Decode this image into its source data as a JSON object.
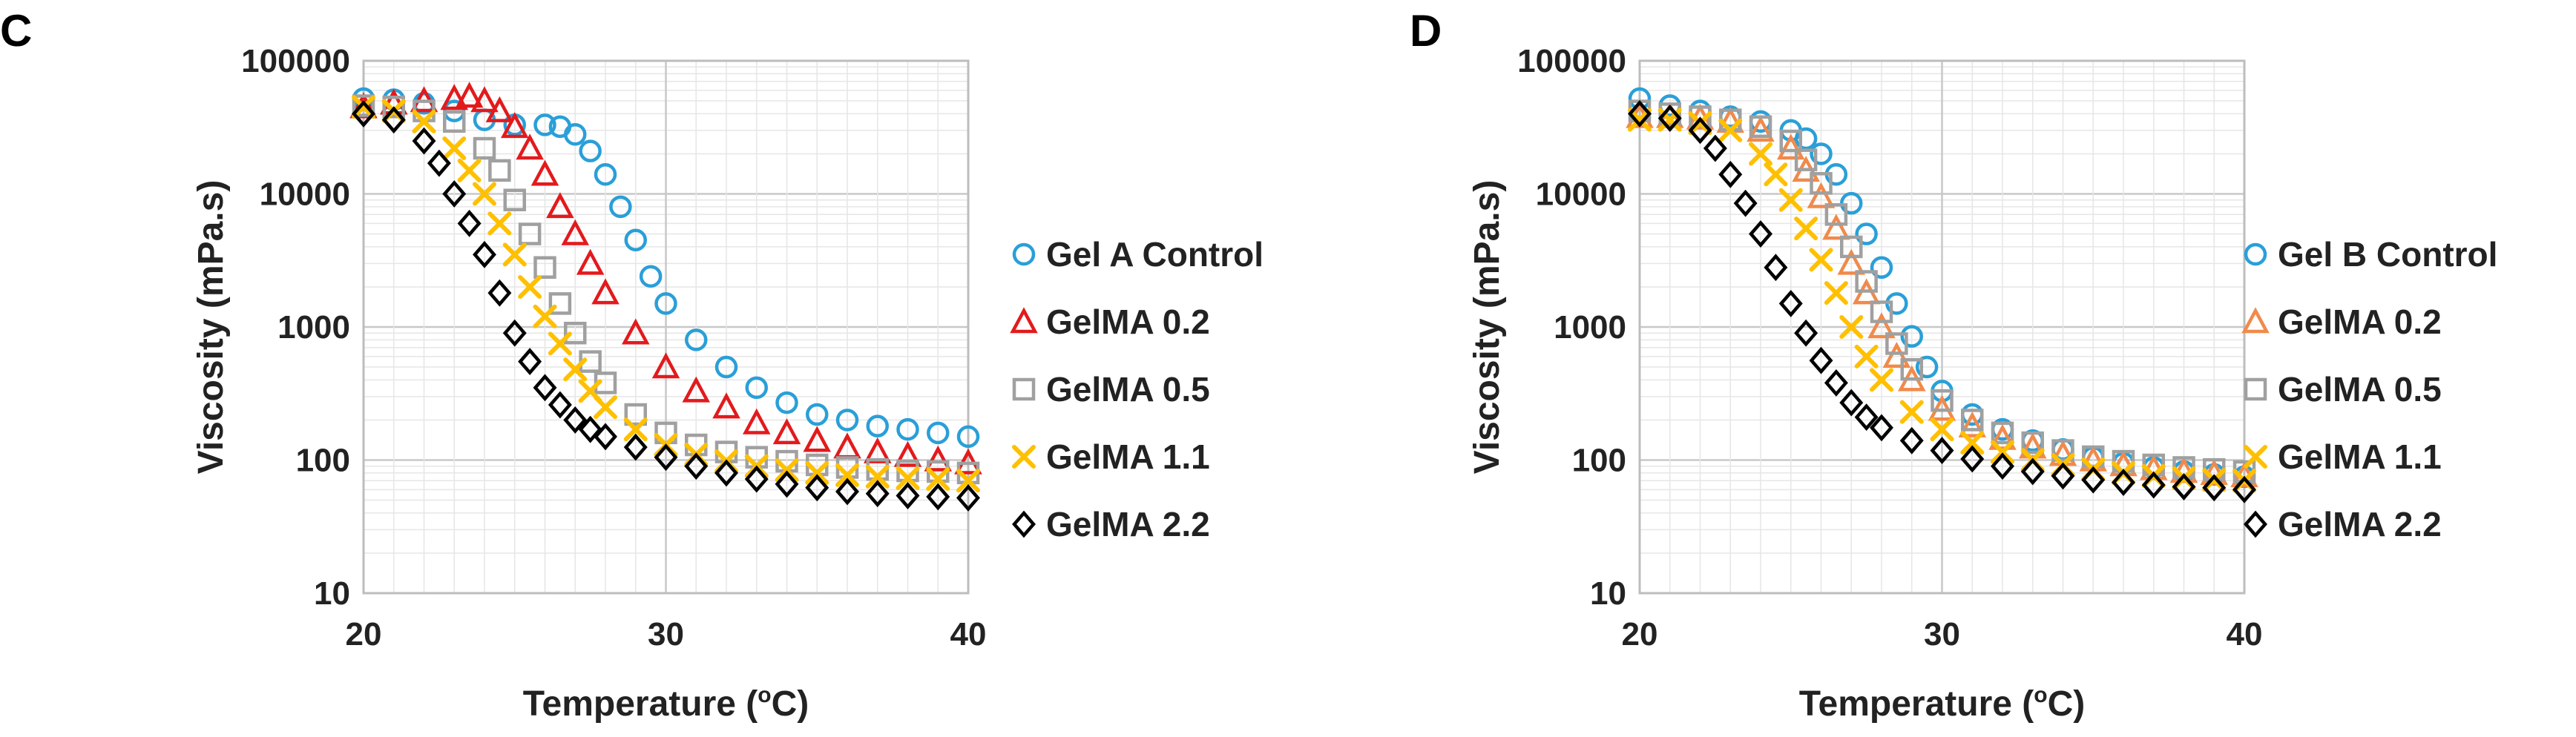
{
  "chart_data": [
    {
      "type": "scatter",
      "panel_label": "C",
      "xlabel_main": "Temperature (",
      "xlabel_sup": "o",
      "xlabel_end": "C)",
      "ylabel": "Viscosity (mPa.s)",
      "xlim": [
        20,
        40
      ],
      "ylim": [
        10,
        100000
      ],
      "yscale": "log",
      "x_ticks": [
        "20",
        "30",
        "40"
      ],
      "y_ticks": [
        "10",
        "100",
        "1000",
        "10000",
        "100000"
      ],
      "grid": true,
      "legend_position": "right",
      "series": [
        {
          "name": "Gel A Control",
          "marker": "circle",
          "color": "#2a9fd8",
          "x": [
            20,
            21,
            22,
            23,
            24,
            25,
            26,
            26.5,
            27,
            27.5,
            28,
            28.5,
            29,
            29.5,
            30,
            31,
            32,
            33,
            34,
            35,
            36,
            37,
            38,
            39,
            40
          ],
          "y": [
            52000,
            51000,
            48000,
            42000,
            36000,
            33000,
            33000,
            32000,
            28000,
            21000,
            14000,
            8000,
            4500,
            2400,
            1500,
            800,
            500,
            350,
            270,
            220,
            200,
            180,
            170,
            160,
            150
          ]
        },
        {
          "name": "GelMA 0.2",
          "marker": "triangle",
          "color": "#e31a1c",
          "x": [
            20,
            21,
            22,
            23,
            23.5,
            24,
            24.5,
            25,
            25.5,
            26,
            26.5,
            27,
            27.5,
            28,
            29,
            30,
            31,
            32,
            33,
            34,
            35,
            36,
            37,
            38,
            39,
            40
          ],
          "y": [
            45000,
            48000,
            50000,
            52000,
            54000,
            50000,
            42000,
            32000,
            22000,
            14000,
            8000,
            5000,
            3000,
            1800,
            900,
            500,
            330,
            250,
            190,
            160,
            140,
            125,
            115,
            108,
            100,
            95
          ]
        },
        {
          "name": "GelMA 0.5",
          "marker": "square",
          "color": "#a0a0a0",
          "x": [
            20,
            21,
            22,
            23,
            24,
            24.5,
            25,
            25.5,
            26,
            26.5,
            27,
            27.5,
            28,
            29,
            30,
            31,
            32,
            33,
            34,
            35,
            36,
            37,
            38,
            39,
            40
          ],
          "y": [
            46000,
            45000,
            42000,
            35000,
            22000,
            15000,
            9000,
            5000,
            2800,
            1500,
            900,
            550,
            380,
            220,
            160,
            130,
            115,
            105,
            98,
            92,
            88,
            85,
            83,
            82,
            80
          ]
        },
        {
          "name": "GelMA 1.1",
          "marker": "x",
          "color": "#ffc000",
          "x": [
            20,
            21,
            22,
            23,
            23.5,
            24,
            24.5,
            25,
            25.5,
            26,
            26.5,
            27,
            27.5,
            28,
            29,
            30,
            31,
            32,
            33,
            34,
            35,
            36,
            37,
            38,
            39,
            40
          ],
          "y": [
            45000,
            42000,
            35000,
            22000,
            15000,
            10000,
            6000,
            3500,
            2000,
            1200,
            750,
            480,
            330,
            250,
            170,
            130,
            110,
            98,
            90,
            84,
            80,
            77,
            75,
            73,
            72,
            70
          ]
        },
        {
          "name": "GelMA 2.2",
          "marker": "diamond",
          "color": "#000000",
          "x": [
            20,
            21,
            22,
            22.5,
            23,
            23.5,
            24,
            24.5,
            25,
            25.5,
            26,
            26.5,
            27,
            27.5,
            28,
            29,
            30,
            31,
            32,
            33,
            34,
            35,
            36,
            37,
            38,
            39,
            40
          ],
          "y": [
            40000,
            36000,
            25000,
            17000,
            10000,
            6000,
            3500,
            1800,
            900,
            550,
            350,
            260,
            200,
            170,
            150,
            125,
            105,
            90,
            80,
            72,
            66,
            62,
            58,
            56,
            54,
            53,
            52
          ]
        }
      ]
    },
    {
      "type": "scatter",
      "panel_label": "D",
      "xlabel_main": "Temperature (",
      "xlabel_sup": "o",
      "xlabel_end": "C)",
      "ylabel": "Viscosity (mPa.s)",
      "xlim": [
        20,
        40
      ],
      "ylim": [
        10,
        100000
      ],
      "yscale": "log",
      "x_ticks": [
        "20",
        "30",
        "40"
      ],
      "y_ticks": [
        "10",
        "100",
        "1000",
        "10000",
        "100000"
      ],
      "grid": true,
      "legend_position": "right",
      "series": [
        {
          "name": "Gel B Control",
          "marker": "circle",
          "color": "#2a9fd8",
          "x": [
            20,
            21,
            22,
            23,
            24,
            25,
            25.5,
            26,
            26.5,
            27,
            27.5,
            28,
            28.5,
            29,
            29.5,
            30,
            31,
            32,
            33,
            34,
            35,
            36,
            37,
            38,
            39,
            40
          ],
          "y": [
            52000,
            46000,
            42000,
            38000,
            35000,
            30000,
            26000,
            20000,
            14000,
            8500,
            5000,
            2800,
            1500,
            850,
            500,
            330,
            220,
            170,
            140,
            120,
            105,
            95,
            88,
            82,
            78,
            75
          ]
        },
        {
          "name": "GelMA 0.2",
          "marker": "triangle",
          "color": "#f08a4b",
          "x": [
            20,
            21,
            22,
            23,
            24,
            25,
            25.5,
            26,
            26.5,
            27,
            27.5,
            28,
            28.5,
            29,
            30,
            31,
            32,
            33,
            34,
            35,
            36,
            37,
            38,
            39,
            40
          ],
          "y": [
            38000,
            38000,
            37000,
            35000,
            30000,
            22000,
            15000,
            9500,
            5500,
            3000,
            1800,
            1000,
            600,
            400,
            240,
            180,
            145,
            125,
            110,
            100,
            92,
            86,
            82,
            79,
            76
          ]
        },
        {
          "name": "GelMA 0.5",
          "marker": "square",
          "color": "#a0a0a0",
          "x": [
            20,
            21,
            22,
            23,
            24,
            25,
            25.5,
            26,
            26.5,
            27,
            27.5,
            28,
            28.5,
            29,
            30,
            31,
            32,
            33,
            34,
            35,
            36,
            37,
            38,
            39,
            40
          ],
          "y": [
            42000,
            40000,
            38000,
            36000,
            32000,
            25000,
            18000,
            12000,
            7000,
            4000,
            2200,
            1300,
            750,
            480,
            280,
            200,
            160,
            135,
            118,
            106,
            98,
            92,
            88,
            85,
            82
          ]
        },
        {
          "name": "GelMA 1.1",
          "marker": "x",
          "color": "#ffc000",
          "x": [
            20,
            21,
            22,
            23,
            24,
            24.5,
            25,
            25.5,
            26,
            26.5,
            27,
            27.5,
            28,
            29,
            30,
            31,
            32,
            33,
            34,
            35,
            36,
            37,
            38,
            39,
            40
          ],
          "y": [
            36000,
            36000,
            34000,
            30000,
            20000,
            14000,
            9000,
            5500,
            3200,
            1800,
            1000,
            600,
            400,
            230,
            170,
            135,
            115,
            100,
            92,
            85,
            80,
            76,
            73,
            71,
            70
          ]
        },
        {
          "name": "GelMA 2.2",
          "marker": "diamond",
          "color": "#000000",
          "x": [
            20,
            21,
            22,
            22.5,
            23,
            23.5,
            24,
            24.5,
            25,
            25.5,
            26,
            26.5,
            27,
            27.5,
            28,
            29,
            30,
            31,
            32,
            33,
            34,
            35,
            36,
            37,
            38,
            39,
            40
          ],
          "y": [
            40000,
            37000,
            30000,
            22000,
            14000,
            8500,
            5000,
            2800,
            1500,
            900,
            560,
            380,
            270,
            210,
            175,
            140,
            118,
            102,
            90,
            82,
            76,
            71,
            68,
            65,
            63,
            62,
            60
          ]
        }
      ]
    }
  ]
}
